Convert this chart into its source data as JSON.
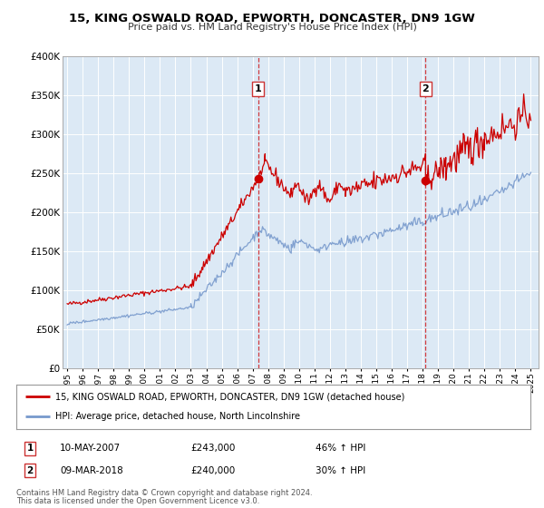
{
  "title": "15, KING OSWALD ROAD, EPWORTH, DONCASTER, DN9 1GW",
  "subtitle": "Price paid vs. HM Land Registry's House Price Index (HPI)",
  "ylim": [
    0,
    400000
  ],
  "xlim_start": 1994.7,
  "xlim_end": 2025.5,
  "background_color": "#ffffff",
  "plot_bg_color": "#dce9f5",
  "grid_color": "#ffffff",
  "red_line_color": "#cc0000",
  "blue_line_color": "#7799cc",
  "sale1_x": 2007.36,
  "sale1_y": 243000,
  "sale1_label": "1",
  "sale1_date": "10-MAY-2007",
  "sale1_price": "£243,000",
  "sale1_hpi": "46% ↑ HPI",
  "sale2_x": 2018.19,
  "sale2_y": 240000,
  "sale2_label": "2",
  "sale2_date": "09-MAR-2018",
  "sale2_price": "£240,000",
  "sale2_hpi": "30% ↑ HPI",
  "legend_line1": "15, KING OSWALD ROAD, EPWORTH, DONCASTER, DN9 1GW (detached house)",
  "legend_line2": "HPI: Average price, detached house, North Lincolnshire",
  "footer1": "Contains HM Land Registry data © Crown copyright and database right 2024.",
  "footer2": "This data is licensed under the Open Government Licence v3.0.",
  "yticks": [
    0,
    50000,
    100000,
    150000,
    200000,
    250000,
    300000,
    350000,
    400000
  ],
  "ytick_labels": [
    "£0",
    "£50K",
    "£100K",
    "£150K",
    "£200K",
    "£250K",
    "£300K",
    "£350K",
    "£400K"
  ]
}
